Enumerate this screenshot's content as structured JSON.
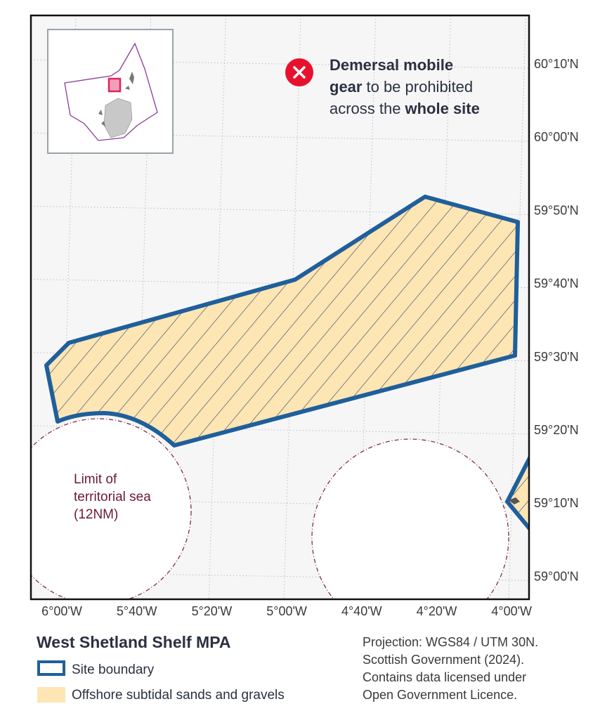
{
  "map": {
    "lat_labels": [
      "60°10'N",
      "60°00'N",
      "59°50'N",
      "59°40'N",
      "59°30'N",
      "59°20'N",
      "59°10'N",
      "59°00'N"
    ],
    "lon_labels": [
      "6°00'W",
      "5°40'W",
      "5°20'W",
      "5°00'W",
      "4°40'W",
      "4°20'W",
      "4°00'W"
    ],
    "annotation": {
      "lines": [
        [
          {
            "text": "Demersal mobile",
            "bold": true
          }
        ],
        [
          {
            "text": "gear",
            "bold": true
          },
          {
            "text": "to be prohibited",
            "bold": false
          }
        ],
        [
          {
            "text": "across the",
            "bold": false
          },
          {
            "text": "whole site",
            "bold": true
          }
        ]
      ]
    },
    "territorial_label": [
      "Limit of",
      "territorial sea",
      "(12NM)"
    ]
  },
  "legend": {
    "title": "West Shetland Shelf MPA",
    "items": [
      {
        "label": "Site boundary",
        "swatch": "boundary"
      },
      {
        "label": "Offshore subtidal sands and gravels",
        "swatch": "fill"
      }
    ]
  },
  "source": [
    "Projection: WGS84 / UTM 30N.",
    "Scottish Government (2024).",
    "Contains data licensed under",
    "Open Government Licence."
  ]
}
